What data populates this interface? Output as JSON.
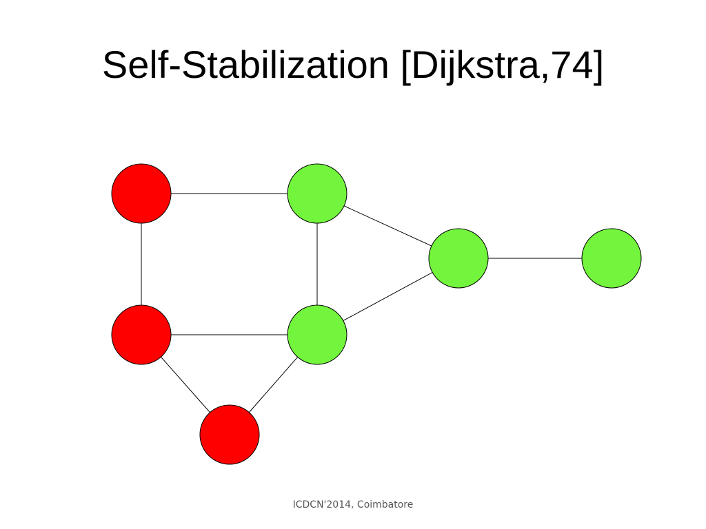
{
  "title": "Self-Stabilization [Dijkstra,74]",
  "footer": "ICDCN'2014, Coimbatore"
}
